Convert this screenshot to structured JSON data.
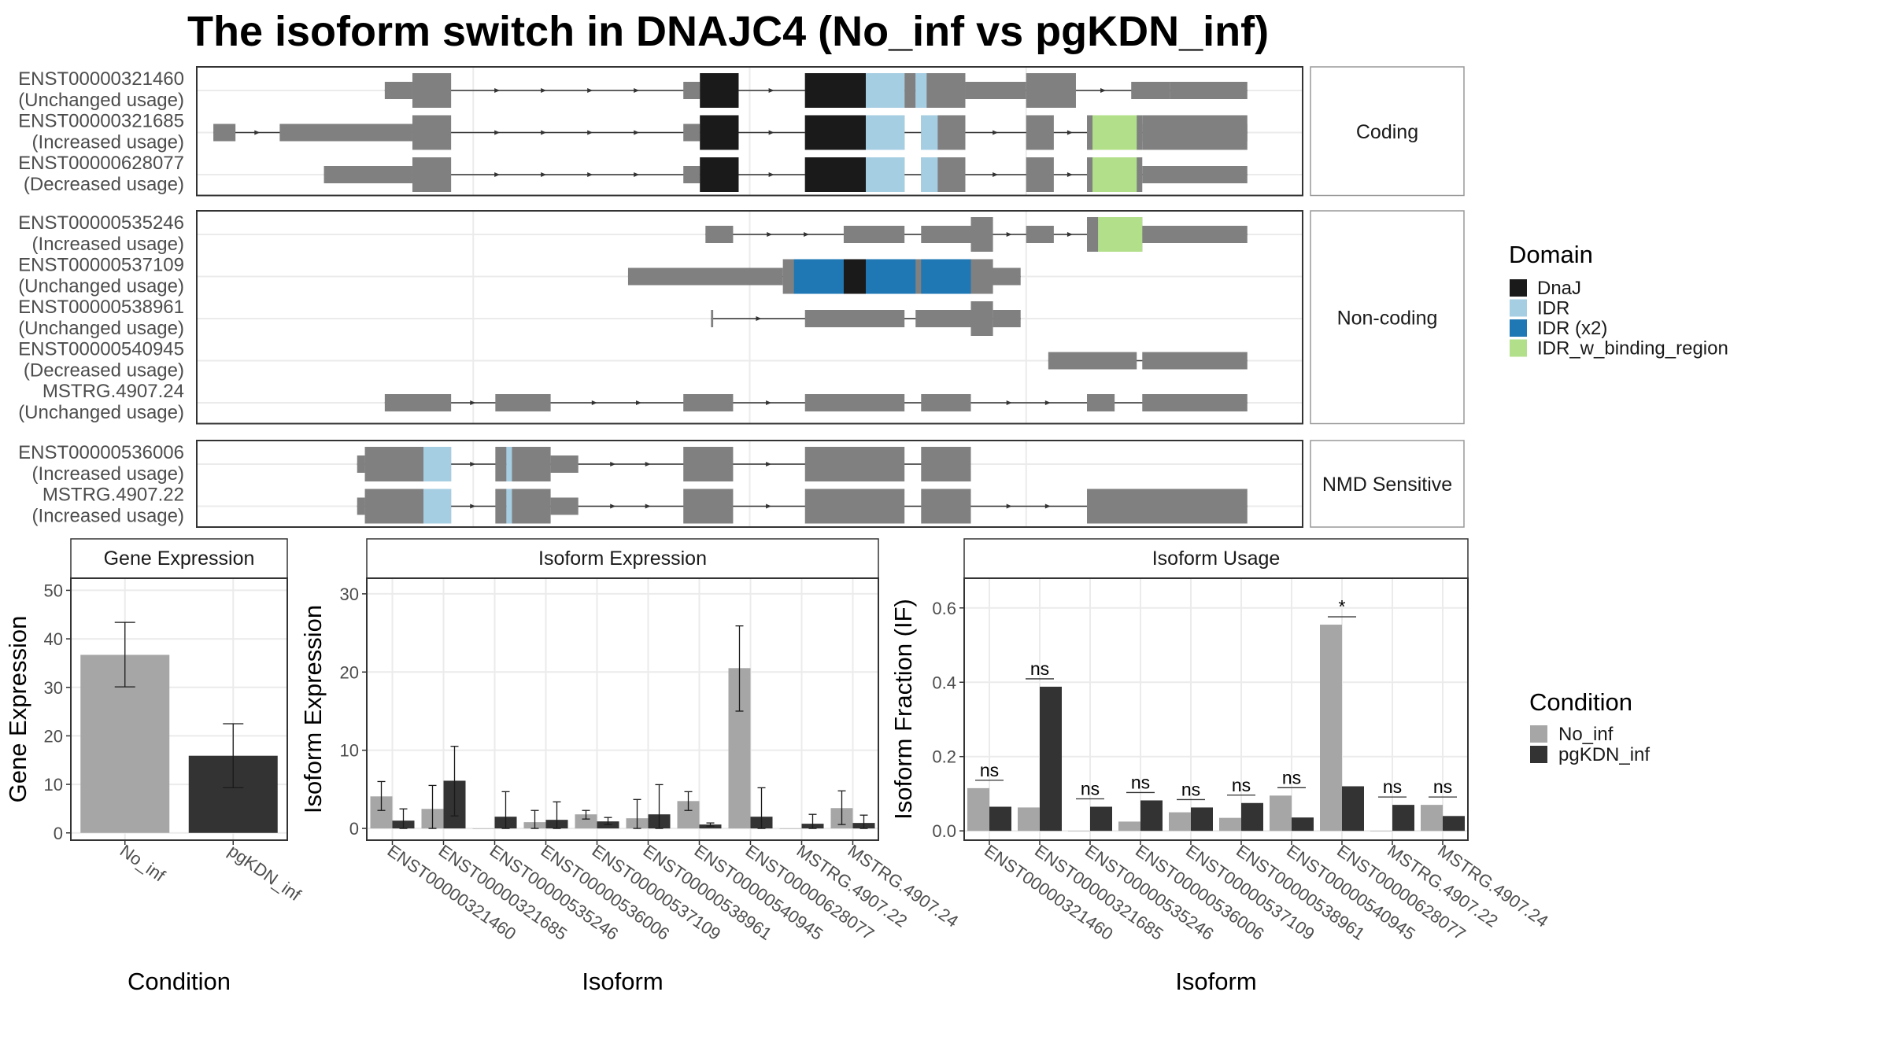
{
  "title": "The isoform switch in DNAJC4 (No_inf vs pgKDN_inf)",
  "colors": {
    "exon": "#808080",
    "intron": "#333333",
    "DnaJ": "#1a1a1a",
    "IDR": "#a6cee3",
    "IDR (x2)": "#1f78b4",
    "IDR_w_binding_region": "#b2df8a",
    "No_inf": "#a6a6a6",
    "pgKDN_inf": "#333333",
    "panel_border": "#333333",
    "grid": "#ebebeb",
    "strip_border": "#999999"
  },
  "chart_data": [
    {
      "type": "gene_structure",
      "title": "The isoform switch in DNAJC4 (No_inf vs pgKDN_inf)",
      "x_domain": [
        0,
        1000
      ],
      "groups": [
        {
          "label": "Coding",
          "isoforms": [
            {
              "id": "ENST00000321460",
              "status": "(Unchanged usage)",
              "utr": [
                [
                  170,
                  195
                ],
                [
                  440,
                  455
                ],
                [
                  695,
                  750
                ],
                [
                  845,
                  880
                ],
                [
                  880,
                  950
                ]
              ],
              "cds": [
                [
                  195,
                  230
                ],
                [
                  455,
                  490
                ],
                [
                  550,
                  605
                ],
                [
                  605,
                  640
                ],
                [
                  640,
                  650
                ],
                [
                  650,
                  695
                ],
                [
                  750,
                  795
                ]
              ],
              "domains": [
                {
                  "name": "DnaJ",
                  "start": 455,
                  "end": 490
                },
                {
                  "name": "DnaJ",
                  "start": 550,
                  "end": 605
                },
                {
                  "name": "IDR",
                  "start": 605,
                  "end": 640
                },
                {
                  "name": "IDR",
                  "start": 650,
                  "end": 660
                }
              ]
            },
            {
              "id": "ENST00000321685",
              "status": "(Increased usage)",
              "utr": [
                [
                  15,
                  35
                ],
                [
                  75,
                  195
                ],
                [
                  440,
                  455
                ],
                [
                  855,
                  950
                ]
              ],
              "cds": [
                [
                  195,
                  230
                ],
                [
                  455,
                  490
                ],
                [
                  550,
                  605
                ],
                [
                  605,
                  640
                ],
                [
                  655,
                  695
                ],
                [
                  750,
                  775
                ],
                [
                  805,
                  855
                ],
                [
                  855,
                  950
                ]
              ],
              "domains": [
                {
                  "name": "DnaJ",
                  "start": 455,
                  "end": 490
                },
                {
                  "name": "DnaJ",
                  "start": 550,
                  "end": 605
                },
                {
                  "name": "IDR",
                  "start": 605,
                  "end": 640
                },
                {
                  "name": "IDR",
                  "start": 655,
                  "end": 670
                },
                {
                  "name": "IDR_w_binding_region",
                  "start": 810,
                  "end": 850
                }
              ]
            },
            {
              "id": "ENST00000628077",
              "status": "(Decreased usage)",
              "utr": [
                [
                  115,
                  195
                ],
                [
                  440,
                  455
                ],
                [
                  855,
                  950
                ]
              ],
              "cds": [
                [
                  195,
                  230
                ],
                [
                  455,
                  490
                ],
                [
                  550,
                  605
                ],
                [
                  605,
                  640
                ],
                [
                  655,
                  695
                ],
                [
                  750,
                  775
                ],
                [
                  805,
                  855
                ]
              ],
              "domains": [
                {
                  "name": "DnaJ",
                  "start": 455,
                  "end": 490
                },
                {
                  "name": "DnaJ",
                  "start": 550,
                  "end": 605
                },
                {
                  "name": "IDR",
                  "start": 605,
                  "end": 640
                },
                {
                  "name": "IDR",
                  "start": 655,
                  "end": 670
                },
                {
                  "name": "IDR_w_binding_region",
                  "start": 810,
                  "end": 850
                }
              ]
            }
          ]
        },
        {
          "label": "Non-coding",
          "isoforms": [
            {
              "id": "ENST00000535246",
              "status": "(Increased usage)",
              "utr": [
                [
                  460,
                  485
                ],
                [
                  585,
                  640
                ],
                [
                  655,
                  700
                ],
                [
                  750,
                  775
                ],
                [
                  805,
                  855
                ],
                [
                  855,
                  950
                ]
              ],
              "cds": [
                [
                  700,
                  720
                ],
                [
                  805,
                  855
                ]
              ],
              "domains": [
                {
                  "name": "IDR_w_binding_region",
                  "start": 815,
                  "end": 855
                }
              ]
            },
            {
              "id": "ENST00000537109",
              "status": "(Unchanged usage)",
              "utr": [
                [
                  390,
                  530
                ],
                [
                  700,
                  745
                ]
              ],
              "cds": [
                [
                  530,
                  700
                ],
                [
                  700,
                  720
                ]
              ],
              "domains": [
                {
                  "name": "IDR (x2)",
                  "start": 540,
                  "end": 585
                },
                {
                  "name": "DnaJ",
                  "start": 585,
                  "end": 605
                },
                {
                  "name": "IDR (x2)",
                  "start": 605,
                  "end": 650
                },
                {
                  "name": "IDR (x2)",
                  "start": 655,
                  "end": 700
                }
              ]
            },
            {
              "id": "ENST00000538961",
              "status": "(Unchanged usage)",
              "utr": [
                [
                  465,
                  467
                ],
                [
                  550,
                  640
                ],
                [
                  650,
                  700
                ],
                [
                  720,
                  745
                ]
              ],
              "cds": [
                [
                  700,
                  720
                ]
              ],
              "domains": []
            },
            {
              "id": "ENST00000540945",
              "status": "(Decreased usage)",
              "utr": [
                [
                  770,
                  850
                ],
                [
                  855,
                  950
                ]
              ],
              "cds": [],
              "domains": []
            },
            {
              "id": "MSTRG.4907.24",
              "status": "(Unchanged usage)",
              "utr": [
                [
                  170,
                  230
                ],
                [
                  270,
                  320
                ],
                [
                  440,
                  485
                ],
                [
                  550,
                  640
                ],
                [
                  655,
                  700
                ],
                [
                  805,
                  830
                ],
                [
                  855,
                  950
                ]
              ],
              "cds": [],
              "domains": []
            }
          ]
        },
        {
          "label": "NMD Sensitive",
          "isoforms": [
            {
              "id": "ENST00000536006",
              "status": "(Increased usage)",
              "utr": [
                [
                  145,
                  152
                ],
                [
                  320,
                  345
                ]
              ],
              "cds": [
                [
                  152,
                  205
                ],
                [
                  205,
                  230
                ],
                [
                  270,
                  280
                ],
                [
                  280,
                  320
                ],
                [
                  440,
                  485
                ],
                [
                  550,
                  640
                ],
                [
                  655,
                  700
                ]
              ],
              "domains": [
                {
                  "name": "IDR",
                  "start": 205,
                  "end": 230
                },
                {
                  "name": "IDR",
                  "start": 280,
                  "end": 285
                }
              ]
            },
            {
              "id": "MSTRG.4907.22",
              "status": "(Increased usage)",
              "utr": [
                [
                  145,
                  152
                ],
                [
                  320,
                  345
                ]
              ],
              "cds": [
                [
                  152,
                  205
                ],
                [
                  205,
                  230
                ],
                [
                  270,
                  280
                ],
                [
                  280,
                  320
                ],
                [
                  440,
                  485
                ],
                [
                  550,
                  640
                ],
                [
                  655,
                  700
                ],
                [
                  805,
                  950
                ]
              ],
              "domains": [
                {
                  "name": "IDR",
                  "start": 205,
                  "end": 230
                },
                {
                  "name": "IDR",
                  "start": 280,
                  "end": 285
                }
              ]
            }
          ]
        }
      ],
      "legend": {
        "title": "Domain",
        "entries": [
          "DnaJ",
          "IDR",
          "IDR (x2)",
          "IDR_w_binding_region"
        ],
        "placement": "right"
      }
    },
    {
      "type": "bar",
      "title": "Gene Expression",
      "xlabel": "Condition",
      "ylabel": "Gene Expression",
      "categories": [
        "No_inf",
        "pgKDN_inf"
      ],
      "values": [
        36.7,
        15.9
      ],
      "error_low": [
        30.1,
        9.3
      ],
      "error_high": [
        43.4,
        22.5
      ],
      "ylim": [
        -1.5,
        52.5
      ],
      "yticks": [
        0,
        10,
        20,
        30,
        40,
        50
      ]
    },
    {
      "type": "bar",
      "title": "Isoform Expression",
      "xlabel": "Isoform",
      "ylabel": "Isoform Expression",
      "categories": [
        "ENST00000321460",
        "ENST00000321685",
        "ENST00000535246",
        "ENST00000536006",
        "ENST00000537109",
        "ENST00000538961",
        "ENST00000540945",
        "ENST00000628077",
        "MSTRG.4907.22",
        "MSTRG.4907.24"
      ],
      "series": [
        {
          "name": "No_inf",
          "values": [
            4.1,
            2.5,
            0.0,
            0.8,
            1.8,
            1.3,
            3.5,
            20.5,
            0.0,
            2.6
          ],
          "error_low": [
            2.3,
            0.0,
            0.0,
            0.0,
            1.2,
            0.0,
            2.3,
            15.0,
            0.0,
            0.5
          ],
          "error_high": [
            6.0,
            5.5,
            0.0,
            2.3,
            2.3,
            3.7,
            4.7,
            25.9,
            0.0,
            4.8
          ]
        },
        {
          "name": "pgKDN_inf",
          "values": [
            1.0,
            6.1,
            1.5,
            1.1,
            0.9,
            1.8,
            0.5,
            1.5,
            0.6,
            0.7
          ],
          "error_low": [
            0.0,
            1.6,
            0.0,
            0.0,
            0.5,
            0.0,
            0.3,
            0.0,
            0.0,
            0.0
          ],
          "error_high": [
            2.5,
            10.5,
            4.7,
            3.4,
            1.4,
            5.6,
            0.7,
            5.2,
            1.8,
            1.7
          ]
        }
      ],
      "ylim": [
        -1.5,
        32
      ],
      "yticks": [
        0,
        10,
        20,
        30
      ]
    },
    {
      "type": "bar",
      "title": "Isoform Usage",
      "xlabel": "Isoform",
      "ylabel": "Isoform Fraction (IF)",
      "categories": [
        "ENST00000321460",
        "ENST00000321685",
        "ENST00000535246",
        "ENST00000536006",
        "ENST00000537109",
        "ENST00000538961",
        "ENST00000540945",
        "ENST00000628077",
        "MSTRG.4907.22",
        "MSTRG.4907.24"
      ],
      "series": [
        {
          "name": "No_inf",
          "values": [
            0.115,
            0.063,
            0.0,
            0.025,
            0.05,
            0.035,
            0.095,
            0.555,
            0.0,
            0.07
          ]
        },
        {
          "name": "pgKDN_inf",
          "values": [
            0.065,
            0.388,
            0.065,
            0.082,
            0.063,
            0.075,
            0.036,
            0.12,
            0.07,
            0.04
          ]
        }
      ],
      "significance": [
        "ns",
        "ns",
        "ns",
        "ns",
        "ns",
        "ns",
        "ns",
        "*",
        "ns",
        "ns"
      ],
      "ylim": [
        -0.025,
        0.68
      ],
      "yticks": [
        0.0,
        0.2,
        0.4,
        0.6
      ],
      "ytick_labels": [
        "0.0",
        "0.2",
        "0.4",
        "0.6"
      ]
    },
    {
      "type": "legend",
      "title": "Condition",
      "entries": [
        "No_inf",
        "pgKDN_inf"
      ]
    }
  ]
}
